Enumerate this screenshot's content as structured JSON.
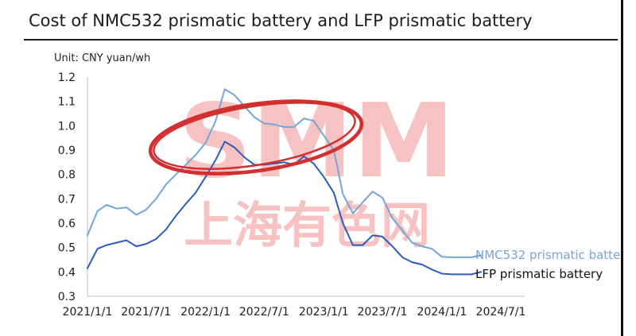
{
  "title": "Cost of NMC532 prismatic battery and LFP prismatic battery",
  "unit_label": "Unit: CNY yuan/wh",
  "watermark": {
    "text": "SMM",
    "subtext": "上海有色网",
    "color": "#e53935"
  },
  "colors": {
    "nmc": "#74a5d8",
    "lfp": "#2a5cc0",
    "axis": "#1c1c1c"
  },
  "chart_data": {
    "type": "line",
    "title": "Cost of NMC532 prismatic battery and LFP prismatic battery",
    "ylabel": "Unit: CNY yuan/wh",
    "xlabel": "",
    "ylim": [
      0.3,
      1.2
    ],
    "yticks": [
      "1.2",
      "1.1",
      "1.0",
      "0.9",
      "0.8",
      "0.7",
      "0.6",
      "0.5",
      "0.4",
      "0.3"
    ],
    "xticks": [
      "2021/1/1",
      "2021/7/1",
      "2022/1/1",
      "2022/7/1",
      "2023/1/1",
      "2023/7/1",
      "2024/1/1",
      "2024/7/1"
    ],
    "xlim": [
      "2021-01-01",
      "2024-07-01"
    ],
    "grid": false,
    "legend": "right",
    "series": [
      {
        "name": "NMC532 prismatic batte",
        "color": "#74a5d8",
        "points": [
          [
            "2021-01-01",
            0.55
          ],
          [
            "2021-02-01",
            0.65
          ],
          [
            "2021-03-01",
            0.675
          ],
          [
            "2021-04-01",
            0.66
          ],
          [
            "2021-05-01",
            0.665
          ],
          [
            "2021-06-01",
            0.635
          ],
          [
            "2021-07-01",
            0.655
          ],
          [
            "2021-08-01",
            0.7
          ],
          [
            "2021-09-01",
            0.76
          ],
          [
            "2021-10-01",
            0.8
          ],
          [
            "2021-11-01",
            0.84
          ],
          [
            "2021-12-01",
            0.88
          ],
          [
            "2022-01-01",
            0.93
          ],
          [
            "2022-02-01",
            1.02
          ],
          [
            "2022-03-01",
            1.15
          ],
          [
            "2022-04-01",
            1.125
          ],
          [
            "2022-05-01",
            1.08
          ],
          [
            "2022-06-01",
            1.035
          ],
          [
            "2022-07-01",
            1.01
          ],
          [
            "2022-08-01",
            1.005
          ],
          [
            "2022-09-01",
            0.995
          ],
          [
            "2022-10-01",
            0.995
          ],
          [
            "2022-11-01",
            1.03
          ],
          [
            "2022-12-01",
            1.02
          ],
          [
            "2023-01-01",
            0.96
          ],
          [
            "2023-02-01",
            0.9
          ],
          [
            "2023-03-01",
            0.72
          ],
          [
            "2023-04-01",
            0.64
          ],
          [
            "2023-05-01",
            0.685
          ],
          [
            "2023-06-01",
            0.73
          ],
          [
            "2023-07-01",
            0.705
          ],
          [
            "2023-08-01",
            0.62
          ],
          [
            "2023-09-01",
            0.57
          ],
          [
            "2023-10-01",
            0.52
          ],
          [
            "2023-11-01",
            0.505
          ],
          [
            "2023-12-01",
            0.495
          ],
          [
            "2024-01-01",
            0.462
          ],
          [
            "2024-02-01",
            0.46
          ],
          [
            "2024-03-01",
            0.46
          ],
          [
            "2024-04-01",
            0.46
          ],
          [
            "2024-05-01",
            0.468
          ]
        ]
      },
      {
        "name": "LFP prismatic battery",
        "color": "#2a5cc0",
        "points": [
          [
            "2021-01-01",
            0.415
          ],
          [
            "2021-02-01",
            0.495
          ],
          [
            "2021-03-01",
            0.51
          ],
          [
            "2021-04-01",
            0.52
          ],
          [
            "2021-05-01",
            0.53
          ],
          [
            "2021-06-01",
            0.505
          ],
          [
            "2021-07-01",
            0.515
          ],
          [
            "2021-08-01",
            0.535
          ],
          [
            "2021-09-01",
            0.575
          ],
          [
            "2021-10-01",
            0.63
          ],
          [
            "2021-11-01",
            0.68
          ],
          [
            "2021-12-01",
            0.725
          ],
          [
            "2022-01-01",
            0.79
          ],
          [
            "2022-02-01",
            0.86
          ],
          [
            "2022-03-01",
            0.935
          ],
          [
            "2022-04-01",
            0.91
          ],
          [
            "2022-05-01",
            0.87
          ],
          [
            "2022-06-01",
            0.84
          ],
          [
            "2022-07-01",
            0.84
          ],
          [
            "2022-08-01",
            0.845
          ],
          [
            "2022-09-01",
            0.85
          ],
          [
            "2022-10-01",
            0.84
          ],
          [
            "2022-11-01",
            0.875
          ],
          [
            "2022-12-01",
            0.845
          ],
          [
            "2023-01-01",
            0.79
          ],
          [
            "2023-02-01",
            0.725
          ],
          [
            "2023-03-01",
            0.6
          ],
          [
            "2023-04-01",
            0.51
          ],
          [
            "2023-05-01",
            0.51
          ],
          [
            "2023-06-01",
            0.55
          ],
          [
            "2023-07-01",
            0.545
          ],
          [
            "2023-08-01",
            0.505
          ],
          [
            "2023-09-01",
            0.46
          ],
          [
            "2023-10-01",
            0.44
          ],
          [
            "2023-11-01",
            0.43
          ],
          [
            "2023-12-01",
            0.41
          ],
          [
            "2024-01-01",
            0.393
          ],
          [
            "2024-02-01",
            0.39
          ],
          [
            "2024-03-01",
            0.39
          ],
          [
            "2024-04-01",
            0.39
          ],
          [
            "2024-05-01",
            0.4
          ]
        ]
      }
    ]
  }
}
